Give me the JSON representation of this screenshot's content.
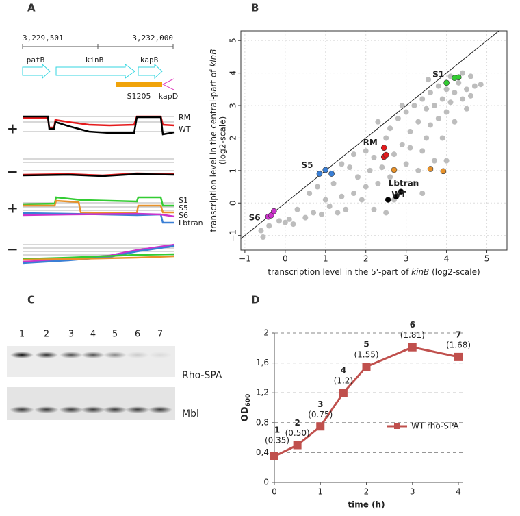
{
  "panel_a": {
    "letter": "A",
    "coordinates": [
      "3,229,501",
      "3,232,000"
    ],
    "genes": [
      "patB",
      "kinB",
      "kapB"
    ],
    "segment": "S1205",
    "terminator": "kapD",
    "strands": [
      "+",
      "−",
      "+",
      "−"
    ],
    "legend_top": [
      {
        "name": "RM",
        "color": "#e41a1c"
      },
      {
        "name": "WT",
        "color": "#000000"
      }
    ],
    "legend_bottom": [
      {
        "name": "S1",
        "color": "#33cc33"
      },
      {
        "name": "S5",
        "color": "#3a7fd5"
      },
      {
        "name": "S6",
        "color": "#cc33cc"
      },
      {
        "name": "Lbtran",
        "color": "#e8922a"
      }
    ]
  },
  "chart_data": [
    {
      "type": "scatter",
      "panel_label": "B",
      "xlabel": [
        "transcription level in the 5'-part of ",
        "kinB",
        " (log2-scale)"
      ],
      "ylabel": [
        [
          "transcription level in the central-part of ",
          "kinB"
        ],
        "(log2-scale)"
      ],
      "xlim": [
        -1.1,
        5.5
      ],
      "ylim": [
        -1.45,
        5.3
      ],
      "xticks": [
        {
          "value": -1,
          "label": "−1"
        },
        0,
        1,
        2,
        3,
        4,
        5
      ],
      "yticks": [
        {
          "value": -1,
          "label": "−1"
        },
        0,
        1,
        2,
        3,
        4,
        5
      ],
      "grid": true,
      "diagonal_line": true,
      "background_points": {
        "color": "#bdbdbd",
        "x": [
          -0.6,
          -0.55,
          -0.4,
          -0.15,
          0.1,
          0.3,
          0.2,
          0.5,
          0.7,
          0.9,
          1.1,
          1.3,
          0.6,
          0.8,
          1.2,
          1.4,
          1.5,
          1.7,
          1.8,
          1.9,
          2.0,
          2.1,
          1.6,
          1.4,
          2.2,
          2.3,
          2.4,
          2.5,
          2.6,
          2.7,
          2.8,
          2.9,
          3.0,
          3.0,
          3.1,
          3.2,
          3.2,
          3.3,
          3.4,
          3.4,
          3.5,
          3.5,
          3.6,
          3.6,
          3.7,
          3.7,
          3.8,
          3.8,
          3.9,
          3.9,
          4.0,
          4.0,
          4.1,
          4.1,
          4.2,
          4.2,
          4.3,
          4.4,
          4.4,
          4.5,
          4.5,
          4.6,
          4.6,
          4.7,
          4.85,
          3.3,
          2.6,
          2.0,
          2.3,
          1.7,
          2.9,
          3.1,
          4.0,
          3.4,
          2.7,
          2.5,
          1.0,
          0.0,
          3.55,
          2.2
        ],
        "y": [
          -0.85,
          -1.05,
          -0.7,
          -0.55,
          -0.5,
          -0.2,
          -0.65,
          -0.45,
          -0.3,
          -0.35,
          -0.1,
          -0.3,
          0.3,
          0.5,
          0.6,
          0.2,
          -0.2,
          0.3,
          0.8,
          0.1,
          0.5,
          1.0,
          1.1,
          1.2,
          -0.2,
          0.6,
          1.1,
          2.0,
          2.3,
          1.5,
          2.6,
          1.8,
          2.8,
          1.2,
          2.2,
          3.0,
          0.6,
          2.5,
          3.2,
          1.6,
          2.0,
          2.9,
          3.4,
          2.4,
          1.3,
          3.0,
          3.6,
          2.6,
          3.2,
          2.0,
          3.5,
          2.8,
          3.9,
          3.1,
          3.4,
          2.5,
          3.7,
          3.2,
          4.0,
          3.5,
          2.9,
          3.9,
          3.3,
          3.6,
          3.65,
          1.0,
          0.8,
          1.6,
          2.5,
          1.5,
          3.0,
          1.7,
          1.3,
          0.3,
          0.1,
          -0.3,
          0.1,
          -0.6,
          3.8,
          1.4
        ]
      },
      "series": [
        {
          "name": "S1",
          "color": "#33cc33",
          "x": [
            4.0,
            4.2,
            4.3
          ],
          "y": [
            3.7,
            3.85,
            3.87
          ]
        },
        {
          "name": "RM",
          "color": "#e41a1c",
          "x": [
            2.45,
            2.45,
            2.5
          ],
          "y": [
            1.7,
            1.42,
            1.48
          ]
        },
        {
          "name": "S5",
          "color": "#3a7fd5",
          "x": [
            0.85,
            1.0,
            1.15
          ],
          "y": [
            0.9,
            1.02,
            0.9
          ]
        },
        {
          "name": "S6",
          "color": "#cc33cc",
          "x": [
            -0.42,
            -0.35,
            -0.28
          ],
          "y": [
            -0.42,
            -0.38,
            -0.25
          ]
        },
        {
          "name": "WT",
          "color": "#000000",
          "x": [
            2.55,
            2.75,
            2.87
          ],
          "y": [
            0.1,
            0.2,
            0.35
          ]
        },
        {
          "name": "Lbtran",
          "color": "#e8922a",
          "x": [
            2.7,
            3.6,
            3.92
          ],
          "y": [
            1.02,
            1.05,
            0.98
          ]
        }
      ]
    },
    {
      "type": "line",
      "panel_label": "D",
      "xlabel": "time (h)",
      "ylabel": [
        "OD",
        "600"
      ],
      "x": [
        0,
        0.5,
        1,
        1.5,
        2,
        3,
        4
      ],
      "xlim": [
        0,
        4
      ],
      "ylim": [
        0,
        2
      ],
      "xticks": [
        0,
        1,
        2,
        3,
        4
      ],
      "yticks": [
        0,
        {
          "value": 0.4,
          "label": "0,4"
        },
        {
          "value": 0.8,
          "label": "0,8"
        },
        {
          "value": 1.2,
          "label": "1,2"
        },
        {
          "value": 1.6,
          "label": "1,6"
        },
        2
      ],
      "grid": true,
      "legend": "center-right",
      "point_labels": [
        "1",
        "2",
        "3",
        "4",
        "5",
        "6",
        "7"
      ],
      "series": [
        {
          "name": "WT rho-SPA",
          "color": "#c0504d",
          "values": [
            0.35,
            0.5,
            0.75,
            1.2,
            1.55,
            1.81,
            1.68
          ],
          "value_labels": [
            "(0.35)",
            "(0.50)",
            "(0.75)",
            "(1.2)",
            "(1.55)",
            "(1.81)",
            "(1.68)"
          ]
        }
      ]
    }
  ],
  "panel_c": {
    "letter": "C",
    "lanes": [
      "1",
      "2",
      "3",
      "4",
      "5",
      "6",
      "7"
    ],
    "blots": [
      "Rho-SPA",
      "Mbl"
    ]
  }
}
